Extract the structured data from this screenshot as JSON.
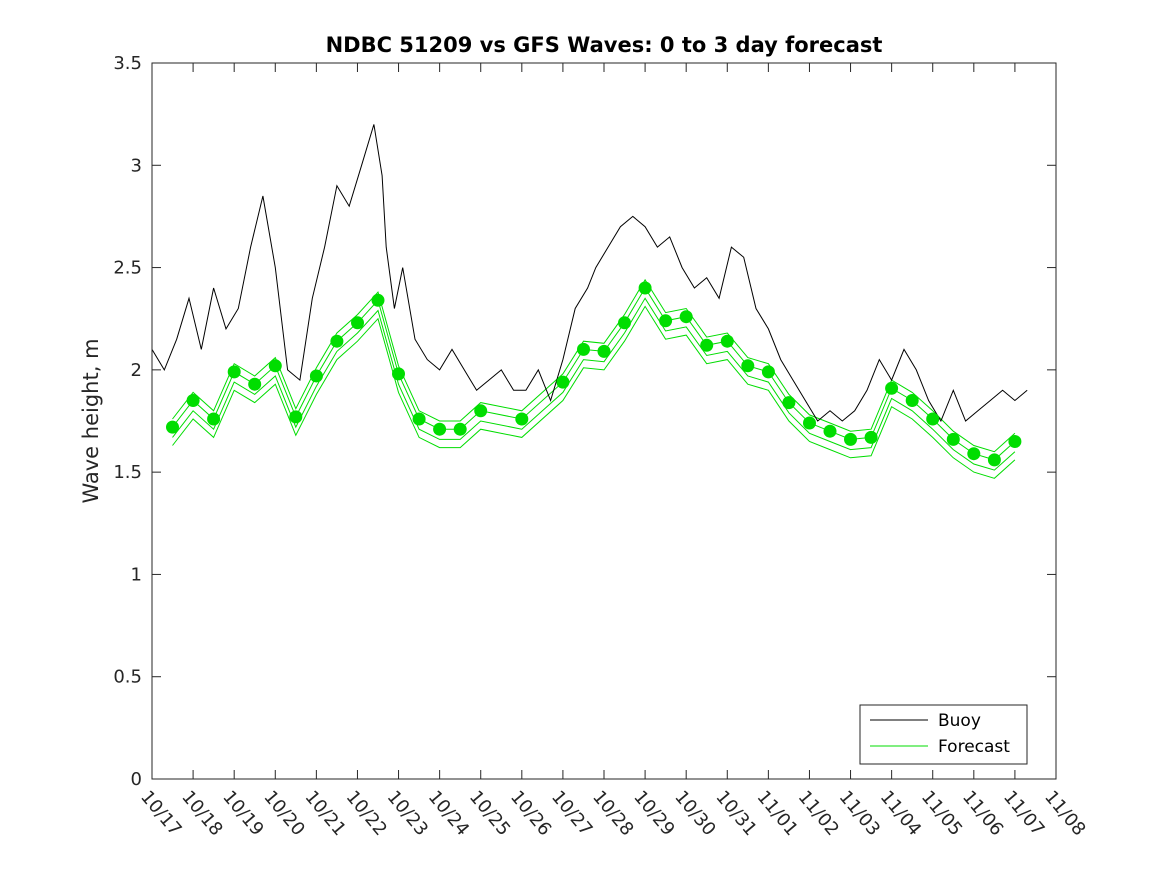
{
  "chart_data": {
    "type": "line",
    "title": "NDBC 51209 vs GFS Waves: 0 to 3 day forecast",
    "xlabel": "",
    "ylabel": "Wave height, m",
    "xlim": [
      0,
      22
    ],
    "ylim": [
      0,
      3.5
    ],
    "yticks": [
      0,
      0.5,
      1,
      1.5,
      2,
      2.5,
      3,
      3.5
    ],
    "ytick_labels": [
      "0",
      "0.5",
      "1",
      "1.5",
      "2",
      "2.5",
      "3",
      "3.5"
    ],
    "xtick_labels": [
      "10/17",
      "10/18",
      "10/19",
      "10/20",
      "10/21",
      "10/22",
      "10/23",
      "10/24",
      "10/25",
      "10/26",
      "10/27",
      "10/28",
      "10/29",
      "10/30",
      "10/31",
      "11/01",
      "11/02",
      "11/03",
      "11/04",
      "11/05",
      "11/06",
      "11/07",
      "11/08"
    ],
    "legend": {
      "position": "bottom-right",
      "entries": [
        "Buoy",
        "Forecast"
      ]
    },
    "colors": {
      "buoy": "#000000",
      "forecast": "#00dd00",
      "axes": "#262626"
    },
    "series": [
      {
        "name": "Buoy",
        "x": [
          0,
          0.3,
          0.6,
          0.9,
          1.2,
          1.5,
          1.8,
          2.1,
          2.4,
          2.7,
          3.0,
          3.3,
          3.6,
          3.9,
          4.2,
          4.5,
          4.8,
          5.1,
          5.4,
          5.6,
          5.7,
          5.9,
          6.1,
          6.4,
          6.7,
          7.0,
          7.3,
          7.6,
          7.9,
          8.2,
          8.5,
          8.8,
          9.1,
          9.4,
          9.7,
          10.0,
          10.3,
          10.6,
          10.8,
          11.1,
          11.4,
          11.7,
          12.0,
          12.3,
          12.6,
          12.9,
          13.2,
          13.5,
          13.8,
          14.1,
          14.4,
          14.7,
          15.0,
          15.3,
          15.6,
          15.9,
          16.2,
          16.5,
          16.8,
          17.1,
          17.4,
          17.7,
          18.0,
          18.3,
          18.6,
          18.9,
          19.2,
          19.5,
          19.8,
          20.1,
          20.4,
          20.7,
          21.0,
          21.3
        ],
        "values": [
          2.1,
          2.0,
          2.15,
          2.35,
          2.1,
          2.4,
          2.2,
          2.3,
          2.6,
          2.85,
          2.5,
          2.0,
          1.95,
          2.35,
          2.6,
          2.9,
          2.8,
          3.0,
          3.2,
          2.95,
          2.6,
          2.3,
          2.5,
          2.15,
          2.05,
          2.0,
          2.1,
          2.0,
          1.9,
          1.95,
          2.0,
          1.9,
          1.9,
          2.0,
          1.85,
          2.05,
          2.3,
          2.4,
          2.5,
          2.6,
          2.7,
          2.75,
          2.7,
          2.6,
          2.65,
          2.5,
          2.4,
          2.45,
          2.35,
          2.6,
          2.55,
          2.3,
          2.2,
          2.05,
          1.95,
          1.85,
          1.75,
          1.8,
          1.75,
          1.8,
          1.9,
          2.05,
          1.95,
          2.1,
          2.0,
          1.85,
          1.75,
          1.9,
          1.75,
          1.8,
          1.85,
          1.9,
          1.85,
          1.9
        ]
      },
      {
        "name": "Forecast",
        "x": [
          0.5,
          1.0,
          1.5,
          2.0,
          2.5,
          3.0,
          3.5,
          4.0,
          4.5,
          5.0,
          5.5,
          6.0,
          6.5,
          7.0,
          7.5,
          8.0,
          9.0,
          10.0,
          10.5,
          11.0,
          11.5,
          12.0,
          12.5,
          13.0,
          13.5,
          14.0,
          14.5,
          15.0,
          15.5,
          16.0,
          16.5,
          17.0,
          17.5,
          18.0,
          18.5,
          19.0,
          19.5,
          20.0,
          20.5,
          21.0
        ],
        "values": [
          1.72,
          1.85,
          1.76,
          1.99,
          1.93,
          2.02,
          1.77,
          1.97,
          2.14,
          2.23,
          2.34,
          1.98,
          1.76,
          1.71,
          1.71,
          1.8,
          1.76,
          1.94,
          2.1,
          2.09,
          2.23,
          2.4,
          2.24,
          2.26,
          2.12,
          2.14,
          2.02,
          1.99,
          1.84,
          1.74,
          1.7,
          1.66,
          1.67,
          1.91,
          1.85,
          1.76,
          1.66,
          1.59,
          1.56,
          1.65
        ]
      }
    ]
  }
}
